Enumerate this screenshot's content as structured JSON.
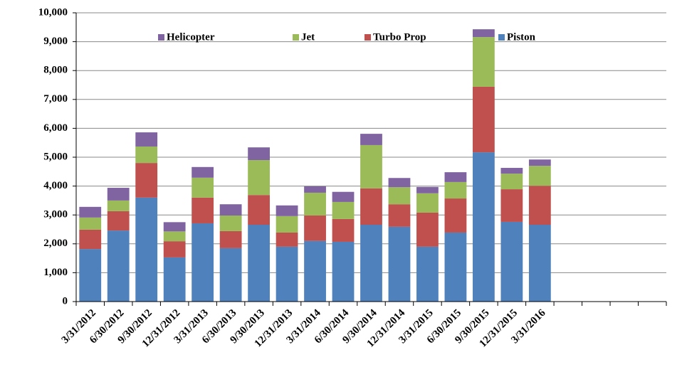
{
  "chart_data": {
    "type": "stacked_bar",
    "categories": [
      "3/31/2012",
      "6/30/2012",
      "9/30/2012",
      "12/31/2012",
      "3/31/2013",
      "6/30/2013",
      "9/30/2013",
      "12/31/2013",
      "3/31/2014",
      "6/30/2014",
      "9/30/2014",
      "12/31/2014",
      "3/31/2015",
      "6/30/2015",
      "9/30/2015",
      "12/31/2015",
      "3/31/2016",
      null,
      null,
      null,
      null
    ],
    "series": [
      {
        "name": "Piston",
        "color": "#4f81bd",
        "values": [
          1820,
          2460,
          3600,
          1530,
          2710,
          1850,
          2660,
          1900,
          2100,
          2070,
          2660,
          2590,
          1900,
          2390,
          5170,
          2760,
          2660,
          null,
          null,
          null,
          null
        ]
      },
      {
        "name": "Turbo Prop",
        "color": "#c0504d",
        "values": [
          670,
          670,
          1200,
          560,
          890,
          590,
          1030,
          490,
          880,
          790,
          1260,
          780,
          1180,
          1180,
          2270,
          1130,
          1350,
          null,
          null,
          null,
          null
        ]
      },
      {
        "name": "Jet",
        "color": "#9bbb59",
        "values": [
          420,
          370,
          570,
          340,
          690,
          540,
          1210,
          570,
          790,
          590,
          1500,
          590,
          670,
          570,
          1720,
          540,
          690,
          null,
          null,
          null,
          null
        ]
      },
      {
        "name": "Helicopter",
        "color": "#8064a2",
        "values": [
          370,
          440,
          490,
          320,
          370,
          390,
          440,
          370,
          220,
          350,
          390,
          320,
          220,
          340,
          270,
          200,
          220,
          null,
          null,
          null,
          null
        ]
      }
    ],
    "ylim": [
      0,
      10000
    ],
    "yticks": [
      0,
      {
        "value": 1000,
        "label": "1,000"
      },
      {
        "value": 2000,
        "label": "2,000"
      },
      {
        "value": 3000,
        "label": "3,000"
      },
      {
        "value": 4000,
        "label": "4,000"
      },
      {
        "value": 5000,
        "label": "5,000"
      },
      {
        "value": 6000,
        "label": "6,000"
      },
      {
        "value": 7000,
        "label": "7,000"
      },
      {
        "value": 8000,
        "label": "8,000"
      },
      {
        "value": 9000,
        "label": "9,000"
      },
      {
        "value": 10000,
        "label": "10,000"
      }
    ],
    "grid": true,
    "legend": "top"
  }
}
